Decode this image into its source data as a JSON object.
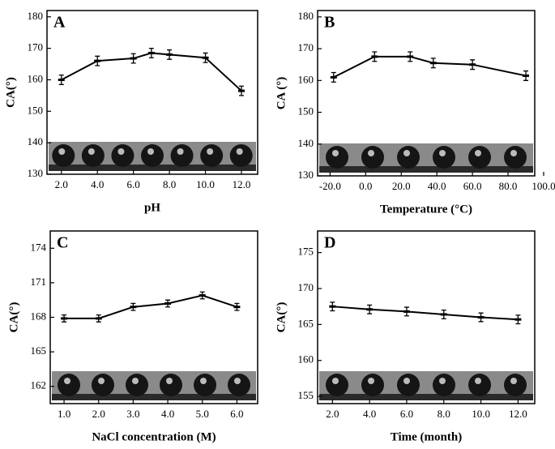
{
  "chart_data": [
    {
      "type": "line",
      "title": "A",
      "x_label": "pH",
      "y_label": "CA(°)",
      "x": [
        2,
        4,
        6,
        7,
        8,
        10,
        12
      ],
      "series": [
        {
          "color": "#000000",
          "values": [
            160,
            166,
            166.8,
            168.5,
            168,
            167,
            156.5
          ],
          "errors": [
            1.5,
            1.5,
            1.5,
            1.5,
            1.5,
            1.5,
            1.5
          ]
        }
      ],
      "xlim": [
        1.2,
        12.9
      ],
      "xticks": [
        {
          "value": 2,
          "label": "2.0"
        },
        {
          "value": 4,
          "label": "4.0"
        },
        {
          "value": 6,
          "label": "6.0"
        },
        {
          "value": 8,
          "label": "8.0"
        },
        {
          "value": 10,
          "label": "10.0"
        },
        {
          "value": 12,
          "label": "12.0"
        }
      ],
      "ylim": [
        130,
        182
      ],
      "yticks": [
        130,
        140,
        150,
        160,
        170,
        180
      ]
    },
    {
      "type": "line",
      "title": "B",
      "x_label": "Temperature (°C)",
      "y_label": "CA (°)",
      "x": [
        -18,
        5,
        25,
        38,
        60,
        90
      ],
      "series": [
        {
          "color": "#000000",
          "values": [
            161,
            167.5,
            167.5,
            165.5,
            165,
            161.5
          ],
          "errors": [
            1.5,
            1.5,
            1.5,
            1.5,
            1.5,
            1.5
          ]
        }
      ],
      "xlim": [
        -27,
        95
      ],
      "xticks": [
        {
          "value": -20,
          "label": "-20.0"
        },
        {
          "value": 0,
          "label": "0.0"
        },
        {
          "value": 20,
          "label": "20.0"
        },
        {
          "value": 40,
          "label": "40.0"
        },
        {
          "value": 60,
          "label": "60.0"
        },
        {
          "value": 80,
          "label": "80.0"
        },
        {
          "value": 100,
          "label": "100.0"
        }
      ],
      "ylim": [
        130,
        182
      ],
      "yticks": [
        130,
        140,
        150,
        160,
        170,
        180
      ]
    },
    {
      "type": "line",
      "title": "C",
      "x_label": "NaCl concentration (M)",
      "y_label": "CA(°)",
      "x": [
        1,
        2,
        3,
        4,
        5,
        6
      ],
      "series": [
        {
          "color": "#000000",
          "values": [
            167.9,
            167.9,
            168.9,
            169.2,
            169.9,
            168.9
          ],
          "errors": [
            0.3,
            0.3,
            0.3,
            0.3,
            0.3,
            0.3
          ]
        }
      ],
      "xlim": [
        0.6,
        6.6
      ],
      "xticks": [
        {
          "value": 1,
          "label": "1.0"
        },
        {
          "value": 2,
          "label": "2.0"
        },
        {
          "value": 3,
          "label": "3.0"
        },
        {
          "value": 4,
          "label": "4.0"
        },
        {
          "value": 5,
          "label": "5.0"
        },
        {
          "value": 6,
          "label": "6.0"
        }
      ],
      "ylim": [
        160.5,
        175.5
      ],
      "yticks": [
        162,
        165,
        168,
        171,
        174
      ]
    },
    {
      "type": "line",
      "title": "D",
      "x_label": "Time (month)",
      "y_label": "CA(°)",
      "x": [
        2,
        4,
        6,
        8,
        10,
        12
      ],
      "series": [
        {
          "color": "#000000",
          "values": [
            167.5,
            167.1,
            166.8,
            166.4,
            166,
            165.7
          ],
          "errors": [
            0.6,
            0.6,
            0.6,
            0.6,
            0.6,
            0.6
          ]
        }
      ],
      "xlim": [
        1.2,
        12.9
      ],
      "xticks": [
        {
          "value": 2,
          "label": "2.0"
        },
        {
          "value": 4,
          "label": "4.0"
        },
        {
          "value": 6,
          "label": "6.0"
        },
        {
          "value": 8,
          "label": "8.0"
        },
        {
          "value": 10,
          "label": "10.0"
        },
        {
          "value": 12,
          "label": "12.0"
        }
      ],
      "ylim": [
        154,
        178
      ],
      "yticks": [
        155,
        160,
        165,
        170,
        175
      ]
    }
  ]
}
